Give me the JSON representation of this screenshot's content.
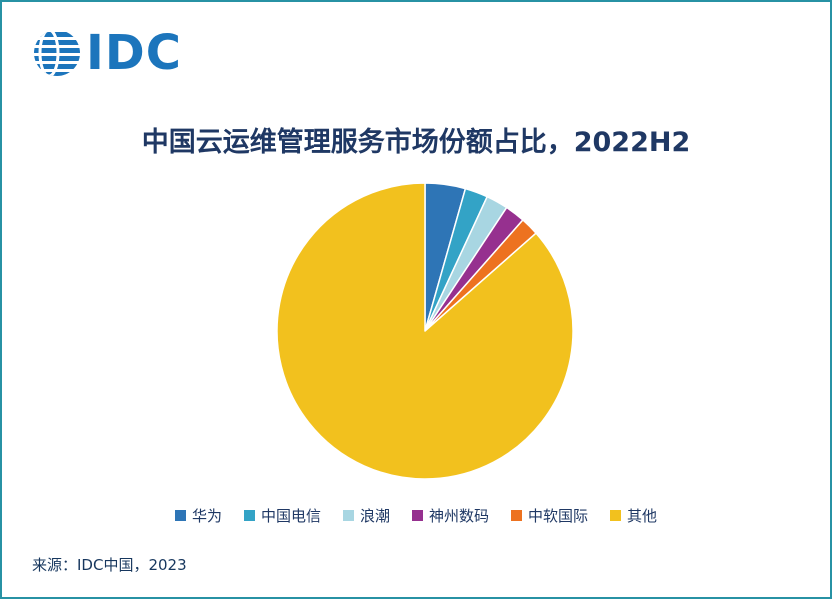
{
  "page": {
    "border_color": "#2792a4",
    "background": "#ffffff"
  },
  "logo": {
    "text": "IDC",
    "color": "#1c75bc"
  },
  "title": "中国云运维管理服务市场份额占比，2022H2",
  "source": "来源：IDC中国，2023",
  "chart_data": {
    "type": "pie",
    "title": "中国云运维管理服务市场份额占比，2022H2",
    "start_angle_deg": 0,
    "direction": "clockwise",
    "legend_position": "bottom",
    "labels": [
      "华为",
      "中国电信",
      "浪潮",
      "神州数码",
      "中软国际",
      "其他"
    ],
    "values": [
      4.4,
      2.5,
      2.4,
      2.2,
      2.0,
      86.5
    ],
    "colors": [
      "#2e75b6",
      "#33a3c6",
      "#a8d6e2",
      "#96308f",
      "#ed7220",
      "#f2c11e"
    ],
    "slice_gap_stroke": "#ffffff"
  }
}
